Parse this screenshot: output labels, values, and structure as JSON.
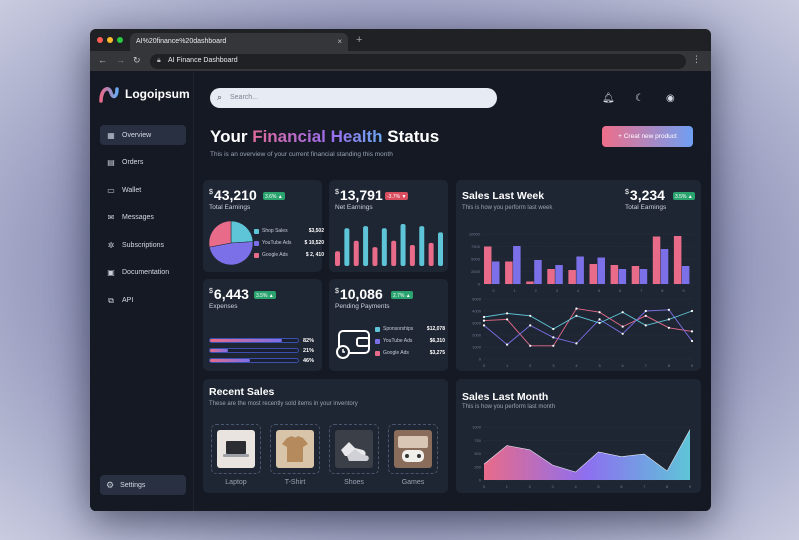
{
  "browser": {
    "tab_title": "AI%20finance%20dashboard",
    "tab_close": "×",
    "new_tab": "+",
    "url": "AI Finance Dashboard",
    "dot_colors": [
      "#ff5f57",
      "#febc2e",
      "#28c840"
    ]
  },
  "sidebar": {
    "logo": "Logoipsum",
    "items": [
      {
        "label": "Overview",
        "icon": "overview-icon",
        "active": true
      },
      {
        "label": "Orders",
        "icon": "orders-icon"
      },
      {
        "label": "Wallet",
        "icon": "wallet-icon"
      },
      {
        "label": "Messages",
        "icon": "messages-icon"
      },
      {
        "label": "Subscriptions",
        "icon": "subscriptions-icon"
      },
      {
        "label": "Documentation",
        "icon": "documentation-icon"
      },
      {
        "label": "API",
        "icon": "api-icon"
      }
    ],
    "settings": "Settings"
  },
  "header": {
    "search_placeholder": "Search...",
    "title_pre": "Your ",
    "title_highlight": "Financial Health",
    "title_post": " Status",
    "subtitle": "This is an overview of your current financial standing this month",
    "create_button": "+ Creat new product"
  },
  "colors": {
    "accent_pink": "#e86b8a",
    "accent_purple": "#7b70e8",
    "accent_cyan": "#5ec5d8",
    "card_bg": "#1f2633"
  },
  "cards": {
    "total_earnings": {
      "currency": "$",
      "value": "43,210",
      "badge": "3.6% ▲",
      "label": "Total Earnings",
      "legend": [
        {
          "name": "Shop Sales",
          "value": "$3,502",
          "color": "#5ec5d8"
        },
        {
          "name": "YouTube Ads",
          "value": "$ 10,520",
          "color": "#7b70e8"
        },
        {
          "name": "Google Ads",
          "value": "$ 2, 410",
          "color": "#e86b8a"
        }
      ]
    },
    "net_earnings": {
      "currency": "$",
      "value": "13,791",
      "badge": "-3.7% ▼",
      "label": "Net Earnings"
    },
    "expenses": {
      "currency": "$",
      "value": "6,443",
      "badge": "3.5% ▲",
      "label": "Expenses",
      "bars": [
        {
          "pct": "82%",
          "fraction": 0.82
        },
        {
          "pct": "21%",
          "fraction": 0.21
        },
        {
          "pct": "46%",
          "fraction": 0.46
        }
      ]
    },
    "pending": {
      "currency": "$",
      "value": "10,086",
      "badge": "2.7% ▲",
      "label": "Pending Payments",
      "legend": [
        {
          "name": "Sponsorships",
          "value": "$12,078",
          "color": "#5ec5d8"
        },
        {
          "name": "YouTube Ads",
          "value": "$6,310",
          "color": "#7b70e8"
        },
        {
          "name": "Google Ads",
          "value": "$3,275",
          "color": "#e86b8a"
        }
      ]
    }
  },
  "sales_week": {
    "title": "Sales Last Week",
    "subtitle": "This is how you perform last week",
    "currency": "$",
    "value": "3,234",
    "badge": "3.5% ▲",
    "label": "Total Earnings"
  },
  "recent_sales": {
    "title": "Recent Sales",
    "subtitle": "These are the most recently sold items in your inventory",
    "items": [
      {
        "name": "Laptop",
        "color": "#e9e4df"
      },
      {
        "name": "T-Shirt",
        "color": "#c9a57d"
      },
      {
        "name": "Shoes",
        "color": "#3b3f47"
      },
      {
        "name": "Games",
        "color": "#8a6c5a"
      }
    ]
  },
  "sales_month": {
    "title": "Sales Last Month",
    "subtitle": "This is how you perform last month"
  },
  "chart_data": [
    {
      "type": "pie",
      "labels": [
        "Shop Sales",
        "YouTube Ads",
        "Google Ads"
      ],
      "values": [
        24,
        48,
        28
      ],
      "colors": [
        "#5ec5d8",
        "#7b70e8",
        "#e86b8a"
      ]
    },
    {
      "type": "bar",
      "values": [
        0.35,
        0.9,
        0.6,
        0.95,
        0.45,
        0.9,
        0.6,
        1.0,
        0.5,
        0.95,
        0.55,
        0.8
      ],
      "colors": [
        "#e86b8a",
        "#5ec5d8"
      ]
    },
    {
      "type": "bar",
      "categories": [
        "0",
        "1",
        "2",
        "3",
        "4",
        "5",
        "6",
        "7",
        "8",
        "9"
      ],
      "yticks": [
        "0",
        "2500",
        "5000",
        "7500",
        "10000"
      ],
      "ylim": [
        0,
        10000
      ],
      "series": [
        {
          "values": [
            7500,
            4500,
            500,
            3000,
            2800,
            4000,
            3800,
            3600,
            9500,
            9600
          ],
          "color": "#e86b8a"
        },
        {
          "values": [
            4500,
            7600,
            4800,
            3800,
            5500,
            5300,
            3000,
            3000,
            7000,
            3600
          ],
          "color": "#7b70e8"
        }
      ]
    },
    {
      "type": "line",
      "categories": [
        "0",
        "1",
        "2",
        "3",
        "4",
        "5",
        "6",
        "7",
        "8",
        "9"
      ],
      "yticks": [
        "0",
        "1000",
        "2000",
        "3000",
        "4000",
        "5000"
      ],
      "ylim": [
        0,
        5000
      ],
      "series": [
        {
          "values": [
            3200,
            3300,
            1100,
            1100,
            4200,
            3900,
            2700,
            3600,
            2600,
            2300
          ],
          "color": "#e86b8a"
        },
        {
          "values": [
            2800,
            1200,
            2800,
            1800,
            1300,
            3300,
            2100,
            4000,
            4100,
            1500
          ],
          "color": "#7b70e8"
        },
        {
          "values": [
            3500,
            3800,
            3600,
            2500,
            3600,
            3000,
            3900,
            2800,
            3300,
            4000
          ],
          "color": "#5ec5d8"
        }
      ]
    },
    {
      "type": "area",
      "categories": [
        "0",
        "1",
        "2",
        "3",
        "4",
        "5",
        "6",
        "7",
        "8",
        "9"
      ],
      "yticks": [
        "0",
        "250",
        "500",
        "750",
        "1000"
      ],
      "ylim": [
        0,
        1000
      ],
      "values": [
        300,
        650,
        570,
        280,
        150,
        530,
        440,
        490,
        170,
        950
      ]
    }
  ]
}
